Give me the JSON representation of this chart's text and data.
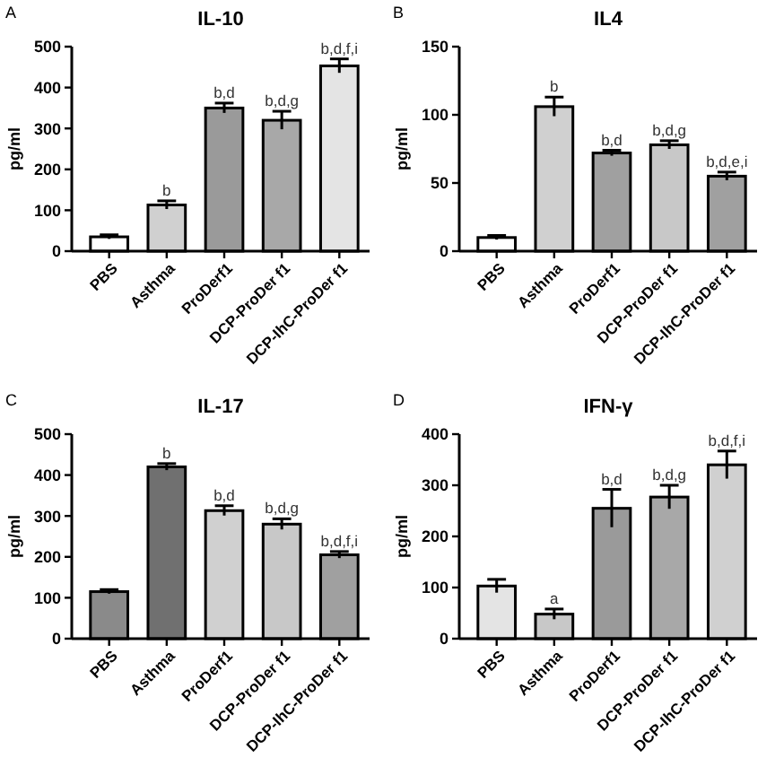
{
  "chart_data": [
    {
      "type": "bar",
      "title": "IL-10",
      "ylabel": "pg/ml",
      "categories": [
        "PBS",
        "Asthma",
        "ProDerf1",
        "DCP-ProDer f1",
        "DCP-IhC-ProDer f1"
      ],
      "values": [
        35,
        113,
        350,
        320,
        453
      ],
      "errors": [
        5,
        10,
        12,
        22,
        17
      ],
      "colors": [
        "#ffffff",
        "#d0d0d0",
        "#9a9a9a",
        "#a8a8a8",
        "#e4e4e4"
      ],
      "ylim": [
        0,
        500
      ],
      "yticks": [
        0,
        100,
        200,
        300,
        400,
        500
      ],
      "annotations": [
        "A",
        {
          "text": "b",
          "x": "Asthma",
          "y": 123
        },
        {
          "text": "b,d",
          "x": "ProDerf1",
          "y": 362
        },
        {
          "text": "b,d,g",
          "x": "DCP-ProDer f1",
          "y": 342
        },
        {
          "text": "b,d,f,i",
          "x": "DCP-IhC-ProDer f1",
          "y": 470
        }
      ]
    },
    {
      "type": "bar",
      "title": "IL4",
      "ylabel": "pg/ml",
      "categories": [
        "PBS",
        "Asthma",
        "ProDerf1",
        "DCP-ProDer f1",
        "DCP-IhC-ProDer f1"
      ],
      "values": [
        10,
        106,
        72,
        78,
        55
      ],
      "errors": [
        1.5,
        7,
        2,
        3,
        3
      ],
      "colors": [
        "#ffffff",
        "#d0d0d0",
        "#a0a0a0",
        "#c8c8c8",
        "#a0a0a0"
      ],
      "ylim": [
        0,
        150
      ],
      "yticks": [
        0,
        50,
        100,
        150
      ],
      "annotations": [
        "B",
        {
          "text": "b",
          "x": "Asthma",
          "y": 113
        },
        {
          "text": "b,d",
          "x": "ProDerf1",
          "y": 74
        },
        {
          "text": "b,d,g",
          "x": "DCP-ProDer f1",
          "y": 81
        },
        {
          "text": "b,d,e,i",
          "x": "DCP-IhC-ProDer f1",
          "y": 58
        }
      ]
    },
    {
      "type": "bar",
      "title": "IL-17",
      "ylabel": "pg/ml",
      "categories": [
        "PBS",
        "Asthma",
        "ProDerf1",
        "DCP-ProDer f1",
        "DCP-IhC-ProDer f1"
      ],
      "values": [
        115,
        420,
        313,
        280,
        205
      ],
      "errors": [
        5,
        8,
        12,
        13,
        8
      ],
      "colors": [
        "#8a8a8a",
        "#707070",
        "#d0d0d0",
        "#c8c8c8",
        "#a0a0a0"
      ],
      "ylim": [
        0,
        500
      ],
      "yticks": [
        0,
        100,
        200,
        300,
        400,
        500
      ],
      "annotations": [
        "C",
        {
          "text": "b",
          "x": "Asthma",
          "y": 428
        },
        {
          "text": "b,d",
          "x": "ProDerf1",
          "y": 325
        },
        {
          "text": "b,d,g",
          "x": "DCP-ProDer f1",
          "y": 293
        },
        {
          "text": "b,d,f,i",
          "x": "DCP-IhC-ProDer f1",
          "y": 213
        }
      ]
    },
    {
      "type": "bar",
      "title": "IFN-γ",
      "ylabel": "pg/ml",
      "categories": [
        "PBS",
        "Asthma",
        "ProDerf1",
        "DCP-ProDer f1",
        "DCP-IhC-ProDer f1"
      ],
      "values": [
        103,
        48,
        255,
        277,
        340
      ],
      "errors": [
        13,
        10,
        37,
        23,
        27
      ],
      "colors": [
        "#e4e4e4",
        "#c8c8c8",
        "#9a9a9a",
        "#a8a8a8",
        "#d0d0d0"
      ],
      "ylim": [
        0,
        400
      ],
      "yticks": [
        0,
        100,
        200,
        300,
        400
      ],
      "annotations": [
        "D",
        {
          "text": "a",
          "x": "Asthma",
          "y": 58
        },
        {
          "text": "b,d",
          "x": "ProDerf1",
          "y": 292
        },
        {
          "text": "b,d,g",
          "x": "DCP-ProDer f1",
          "y": 300
        },
        {
          "text": "b,d,f,i",
          "x": "DCP-IhC-ProDer f1",
          "y": 367
        }
      ]
    }
  ]
}
